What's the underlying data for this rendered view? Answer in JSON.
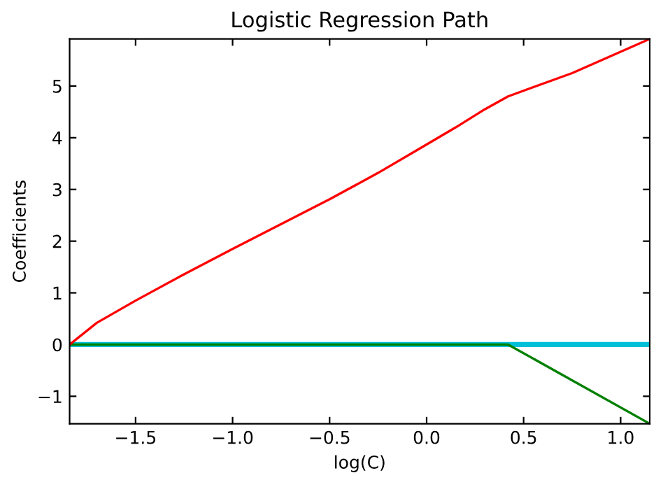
{
  "chart_data": {
    "type": "line",
    "title": "Logistic Regression Path",
    "xlabel": "log(C)",
    "ylabel": "Coefficients",
    "xlim": [
      -1.84,
      1.15
    ],
    "ylim": [
      -1.53,
      5.91
    ],
    "xticks": [
      {
        "value": -1.5,
        "label": "−1.5"
      },
      {
        "value": -1.0,
        "label": "−1.0"
      },
      {
        "value": -0.5,
        "label": "−0.5"
      },
      {
        "value": 0.0,
        "label": "0.0"
      },
      {
        "value": 0.5,
        "label": "0.5"
      },
      {
        "value": 1.0,
        "label": "1.0"
      }
    ],
    "yticks": [
      {
        "value": -1,
        "label": "−1"
      },
      0,
      1,
      2,
      3,
      4,
      5
    ],
    "grid": false,
    "legend": false,
    "series": [
      {
        "color": "#00bfd8",
        "x": [
          -1.84,
          1.15
        ],
        "values": [
          0,
          0
        ]
      },
      {
        "color": "#008000",
        "x": [
          -1.84,
          0.38,
          0.42,
          1.15
        ],
        "values": [
          0,
          0,
          0,
          -1.53
        ]
      },
      {
        "color": "#ff0000",
        "x": [
          -1.84,
          -1.7,
          -1.5,
          -1.25,
          -1.0,
          -0.75,
          -0.5,
          -0.25,
          0.0,
          0.15,
          0.3,
          0.42,
          0.75,
          1.15
        ],
        "values": [
          0,
          0.42,
          0.85,
          1.36,
          1.85,
          2.33,
          2.81,
          3.32,
          3.87,
          4.2,
          4.55,
          4.8,
          5.25,
          5.91
        ]
      }
    ]
  }
}
